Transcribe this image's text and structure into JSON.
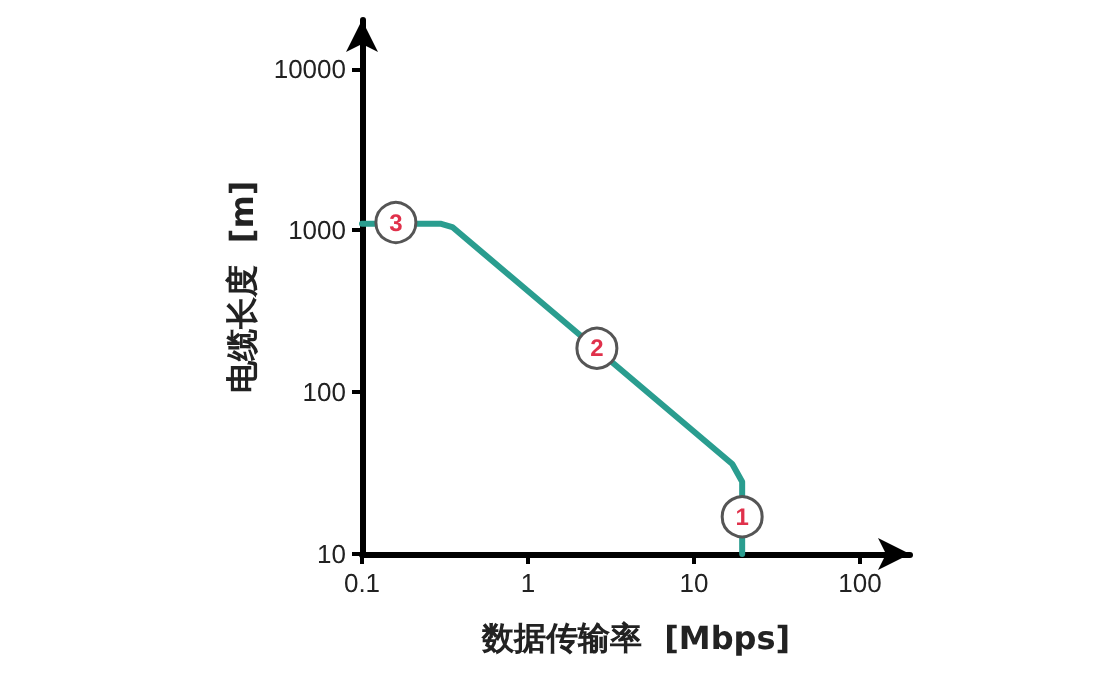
{
  "chart_data": {
    "type": "line",
    "xlabel": "数据传输率  [Mbps]",
    "ylabel": "电缆长度  [m]",
    "log": "xy",
    "grid": false,
    "marker": "none",
    "line_style": "solid",
    "xlim": [
      0.1,
      200
    ],
    "ylim": [
      10,
      20000
    ],
    "xticks": [
      0.1,
      1,
      10,
      100
    ],
    "yticks": [
      10,
      100,
      1000,
      10000
    ],
    "series": [
      {
        "color": "#2a9d8f",
        "x": [
          0.1,
          0.3,
          0.35,
          17,
          19.5,
          19.5
        ],
        "values": [
          1100,
          1100,
          1050,
          36,
          28,
          10
        ]
      }
    ],
    "annotations": [
      {
        "text": "1",
        "x": 19.5,
        "y": 17
      },
      {
        "text": "2",
        "x": 2.6,
        "y": 187
      },
      {
        "text": "3",
        "x": 0.16,
        "y": 1120
      }
    ]
  }
}
